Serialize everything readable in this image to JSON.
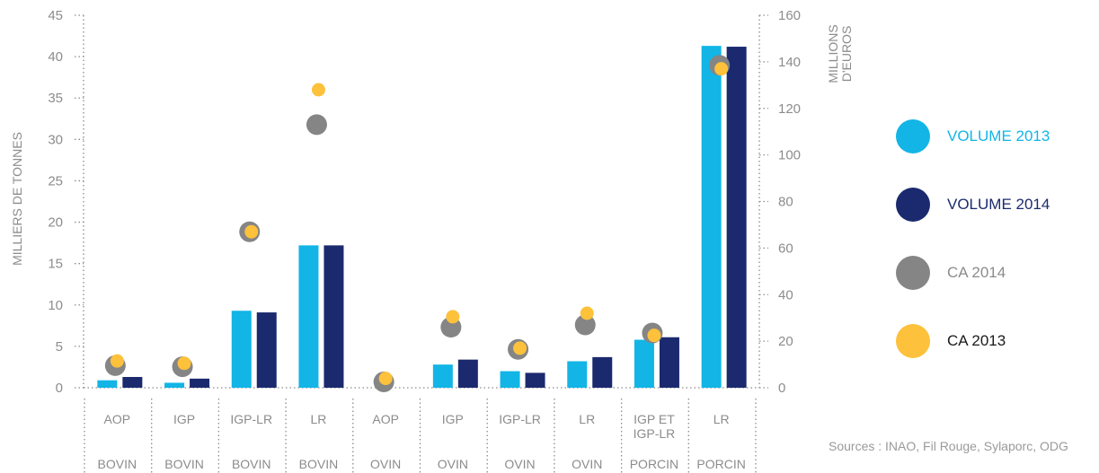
{
  "colors": {
    "volume_2013": "#12b5e6",
    "volume_2014": "#1b2a6e",
    "ca_2014": "#858585",
    "ca_2013": "#fdc13b",
    "axis": "#8c8c8c",
    "text": "#8c8c8c"
  },
  "chart_data": {
    "type": "bar",
    "categories": [
      "AOP BOVIN",
      "IGP BOVIN",
      "IGP-LR BOVIN",
      "LR BOVIN",
      "AOP OVIN",
      "IGP OVIN",
      "IGP-LR OVIN",
      "LR OVIN",
      "IGP ET IGP-LR PORCIN",
      "LR PORCIN"
    ],
    "x_labels_top": [
      [
        "AOP"
      ],
      [
        "IGP"
      ],
      [
        "IGP-LR"
      ],
      [
        "LR"
      ],
      [
        "AOP"
      ],
      [
        "IGP"
      ],
      [
        "IGP-LR"
      ],
      [
        "LR"
      ],
      [
        "IGP ET",
        "IGP-LR"
      ],
      [
        "LR"
      ]
    ],
    "x_labels_bottom": [
      "BOVIN",
      "BOVIN",
      "BOVIN",
      "BOVIN",
      "OVIN",
      "OVIN",
      "OVIN",
      "OVIN",
      "PORCIN",
      "PORCIN"
    ],
    "ylabel": "MILLIERS DE TONNES",
    "y2label": [
      "MILLIONS",
      "D'EUROS"
    ],
    "ylim": [
      0,
      45
    ],
    "y2lim": [
      0,
      160
    ],
    "yticks": [
      0,
      5,
      10,
      15,
      20,
      25,
      30,
      35,
      40,
      45
    ],
    "y2ticks": [
      0,
      20,
      40,
      60,
      80,
      100,
      120,
      140,
      160
    ],
    "bar_series": [
      {
        "name": "VOLUME 2013",
        "values": [
          0.9,
          0.6,
          9.3,
          17.2,
          0,
          2.8,
          2.0,
          3.2,
          5.8,
          41.3
        ]
      },
      {
        "name": "VOLUME 2014",
        "values": [
          1.3,
          1.1,
          9.1,
          17.2,
          0,
          3.4,
          1.8,
          3.7,
          6.1,
          41.2
        ]
      }
    ],
    "dot_series": [
      {
        "name": "CA 2014",
        "values": [
          9.5,
          9.0,
          67,
          113,
          2.5,
          26,
          16.5,
          27,
          23.5,
          138.5
        ]
      },
      {
        "name": "CA 2013",
        "values": [
          11.5,
          10.5,
          67,
          128,
          4,
          30.5,
          17,
          32,
          22.5,
          137
        ]
      }
    ],
    "grid": false,
    "legend_position": "right"
  },
  "legend": [
    {
      "label": "VOLUME 2013",
      "color": "#12b5e6",
      "text_color": "#12b5e6"
    },
    {
      "label": "VOLUME 2014",
      "color": "#1b2a6e",
      "text_color": "#1b2a6e"
    },
    {
      "label": "CA 2014",
      "color": "#858585",
      "text_color": "#8c8c8c"
    },
    {
      "label": "CA 2013",
      "color": "#fdc13b",
      "text_color": "#1a1a1a"
    }
  ],
  "source_text": "Sources : INAO, Fil Rouge, Sylaporc, ODG"
}
